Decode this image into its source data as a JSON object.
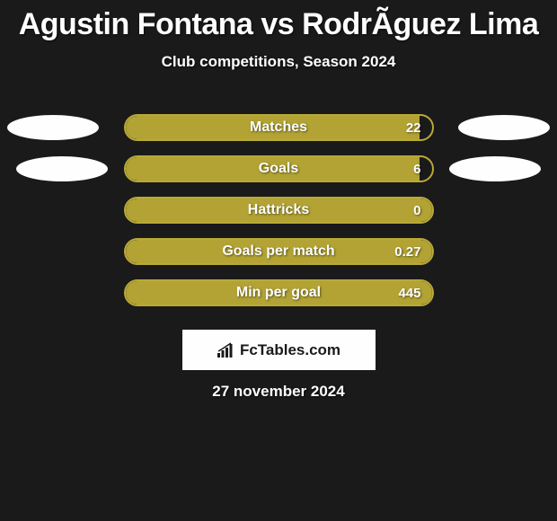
{
  "title": "Agustin Fontana vs RodrÃ­guez Lima",
  "subtitle": "Club competitions, Season 2024",
  "background_color": "#1a1a1a",
  "text_color": "#fefefe",
  "bar_border_color": "#b8a937",
  "bar_fill_color": "#b2a334",
  "oval_color": "#fefefe",
  "stats": [
    {
      "label": "Matches",
      "value": "22",
      "fill_pct": 96,
      "show_ovals": true,
      "oval_left_offset": 8,
      "oval_right_offset": 8
    },
    {
      "label": "Goals",
      "value": "6",
      "fill_pct": 96,
      "show_ovals": true,
      "oval_left_offset": 18,
      "oval_right_offset": 18
    },
    {
      "label": "Hattricks",
      "value": "0",
      "fill_pct": 100,
      "show_ovals": false
    },
    {
      "label": "Goals per match",
      "value": "0.27",
      "fill_pct": 100,
      "show_ovals": false
    },
    {
      "label": "Min per goal",
      "value": "445",
      "fill_pct": 100,
      "show_ovals": false
    }
  ],
  "brand": "FcTables.com",
  "date": "27 november 2024"
}
